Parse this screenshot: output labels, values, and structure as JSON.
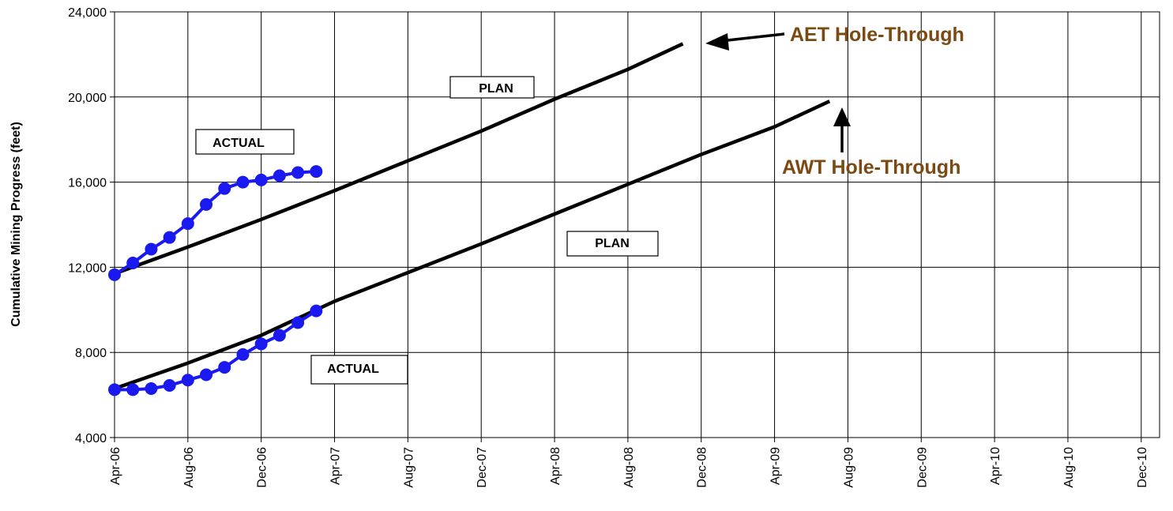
{
  "chart_data": {
    "type": "line",
    "title": "",
    "xlabel": "",
    "ylabel": "Cumulative Mining Progress (feet)",
    "x_tick_labels": [
      "Apr-06",
      "Aug-06",
      "Dec-06",
      "Apr-07",
      "Aug-07",
      "Dec-07",
      "Apr-08",
      "Aug-08",
      "Dec-08",
      "Apr-09",
      "Aug-09",
      "Dec-09",
      "Apr-10",
      "Aug-10",
      "Dec-10"
    ],
    "x_range_months": [
      "2006-04",
      "2011-01"
    ],
    "y_ticks": [
      4000,
      8000,
      12000,
      16000,
      20000,
      24000
    ],
    "y_tick_labels": [
      "4,000",
      "8,000",
      "12,000",
      "16,000",
      "20,000",
      "24,000"
    ],
    "ylim": [
      4000,
      24000
    ],
    "grid": true,
    "series": [
      {
        "kind": "plan",
        "color": "#000000",
        "points": [
          [
            "2006-04",
            11700
          ],
          [
            "2006-08",
            12950
          ],
          [
            "2006-12",
            14250
          ],
          [
            "2007-04",
            15600
          ],
          [
            "2007-08",
            17000
          ],
          [
            "2007-12",
            18400
          ],
          [
            "2008-04",
            19900
          ],
          [
            "2008-08",
            21300
          ],
          [
            "2008-11",
            22500
          ]
        ]
      },
      {
        "kind": "plan",
        "color": "#000000",
        "points": [
          [
            "2006-04",
            6300
          ],
          [
            "2006-08",
            7500
          ],
          [
            "2006-12",
            8800
          ],
          [
            "2007-04",
            10400
          ],
          [
            "2007-08",
            11750
          ],
          [
            "2007-12",
            13100
          ],
          [
            "2008-04",
            14500
          ],
          [
            "2008-08",
            15900
          ],
          [
            "2008-12",
            17300
          ],
          [
            "2009-04",
            18600
          ],
          [
            "2009-07",
            19800
          ]
        ]
      },
      {
        "kind": "actual",
        "color": "#1a1af0",
        "points": [
          [
            "2006-04",
            11650
          ],
          [
            "2006-05",
            12200
          ],
          [
            "2006-06",
            12850
          ],
          [
            "2006-07",
            13400
          ],
          [
            "2006-08",
            14050
          ],
          [
            "2006-09",
            14950
          ],
          [
            "2006-10",
            15700
          ],
          [
            "2006-11",
            16000
          ],
          [
            "2006-12",
            16100
          ],
          [
            "2007-01",
            16300
          ],
          [
            "2007-02",
            16450
          ],
          [
            "2007-03",
            16500
          ]
        ]
      },
      {
        "kind": "actual",
        "color": "#1a1af0",
        "points": [
          [
            "2006-04",
            6250
          ],
          [
            "2006-05",
            6250
          ],
          [
            "2006-06",
            6300
          ],
          [
            "2006-07",
            6450
          ],
          [
            "2006-08",
            6700
          ],
          [
            "2006-09",
            6950
          ],
          [
            "2006-10",
            7300
          ],
          [
            "2006-11",
            7900
          ],
          [
            "2006-12",
            8400
          ],
          [
            "2007-01",
            8800
          ],
          [
            "2007-02",
            9400
          ],
          [
            "2007-03",
            9950
          ]
        ]
      }
    ],
    "labels": [
      {
        "text": "PLAN"
      },
      {
        "text": "PLAN"
      },
      {
        "text": "ACTUAL"
      },
      {
        "text": "ACTUAL"
      }
    ],
    "annotations": [
      {
        "text": "AET Hole-Through",
        "at": [
          "2008-11",
          22500
        ]
      },
      {
        "text": "AWT Hole-Through",
        "at": [
          "2009-07",
          19800
        ]
      }
    ],
    "callout_color": "#7a4a12"
  }
}
